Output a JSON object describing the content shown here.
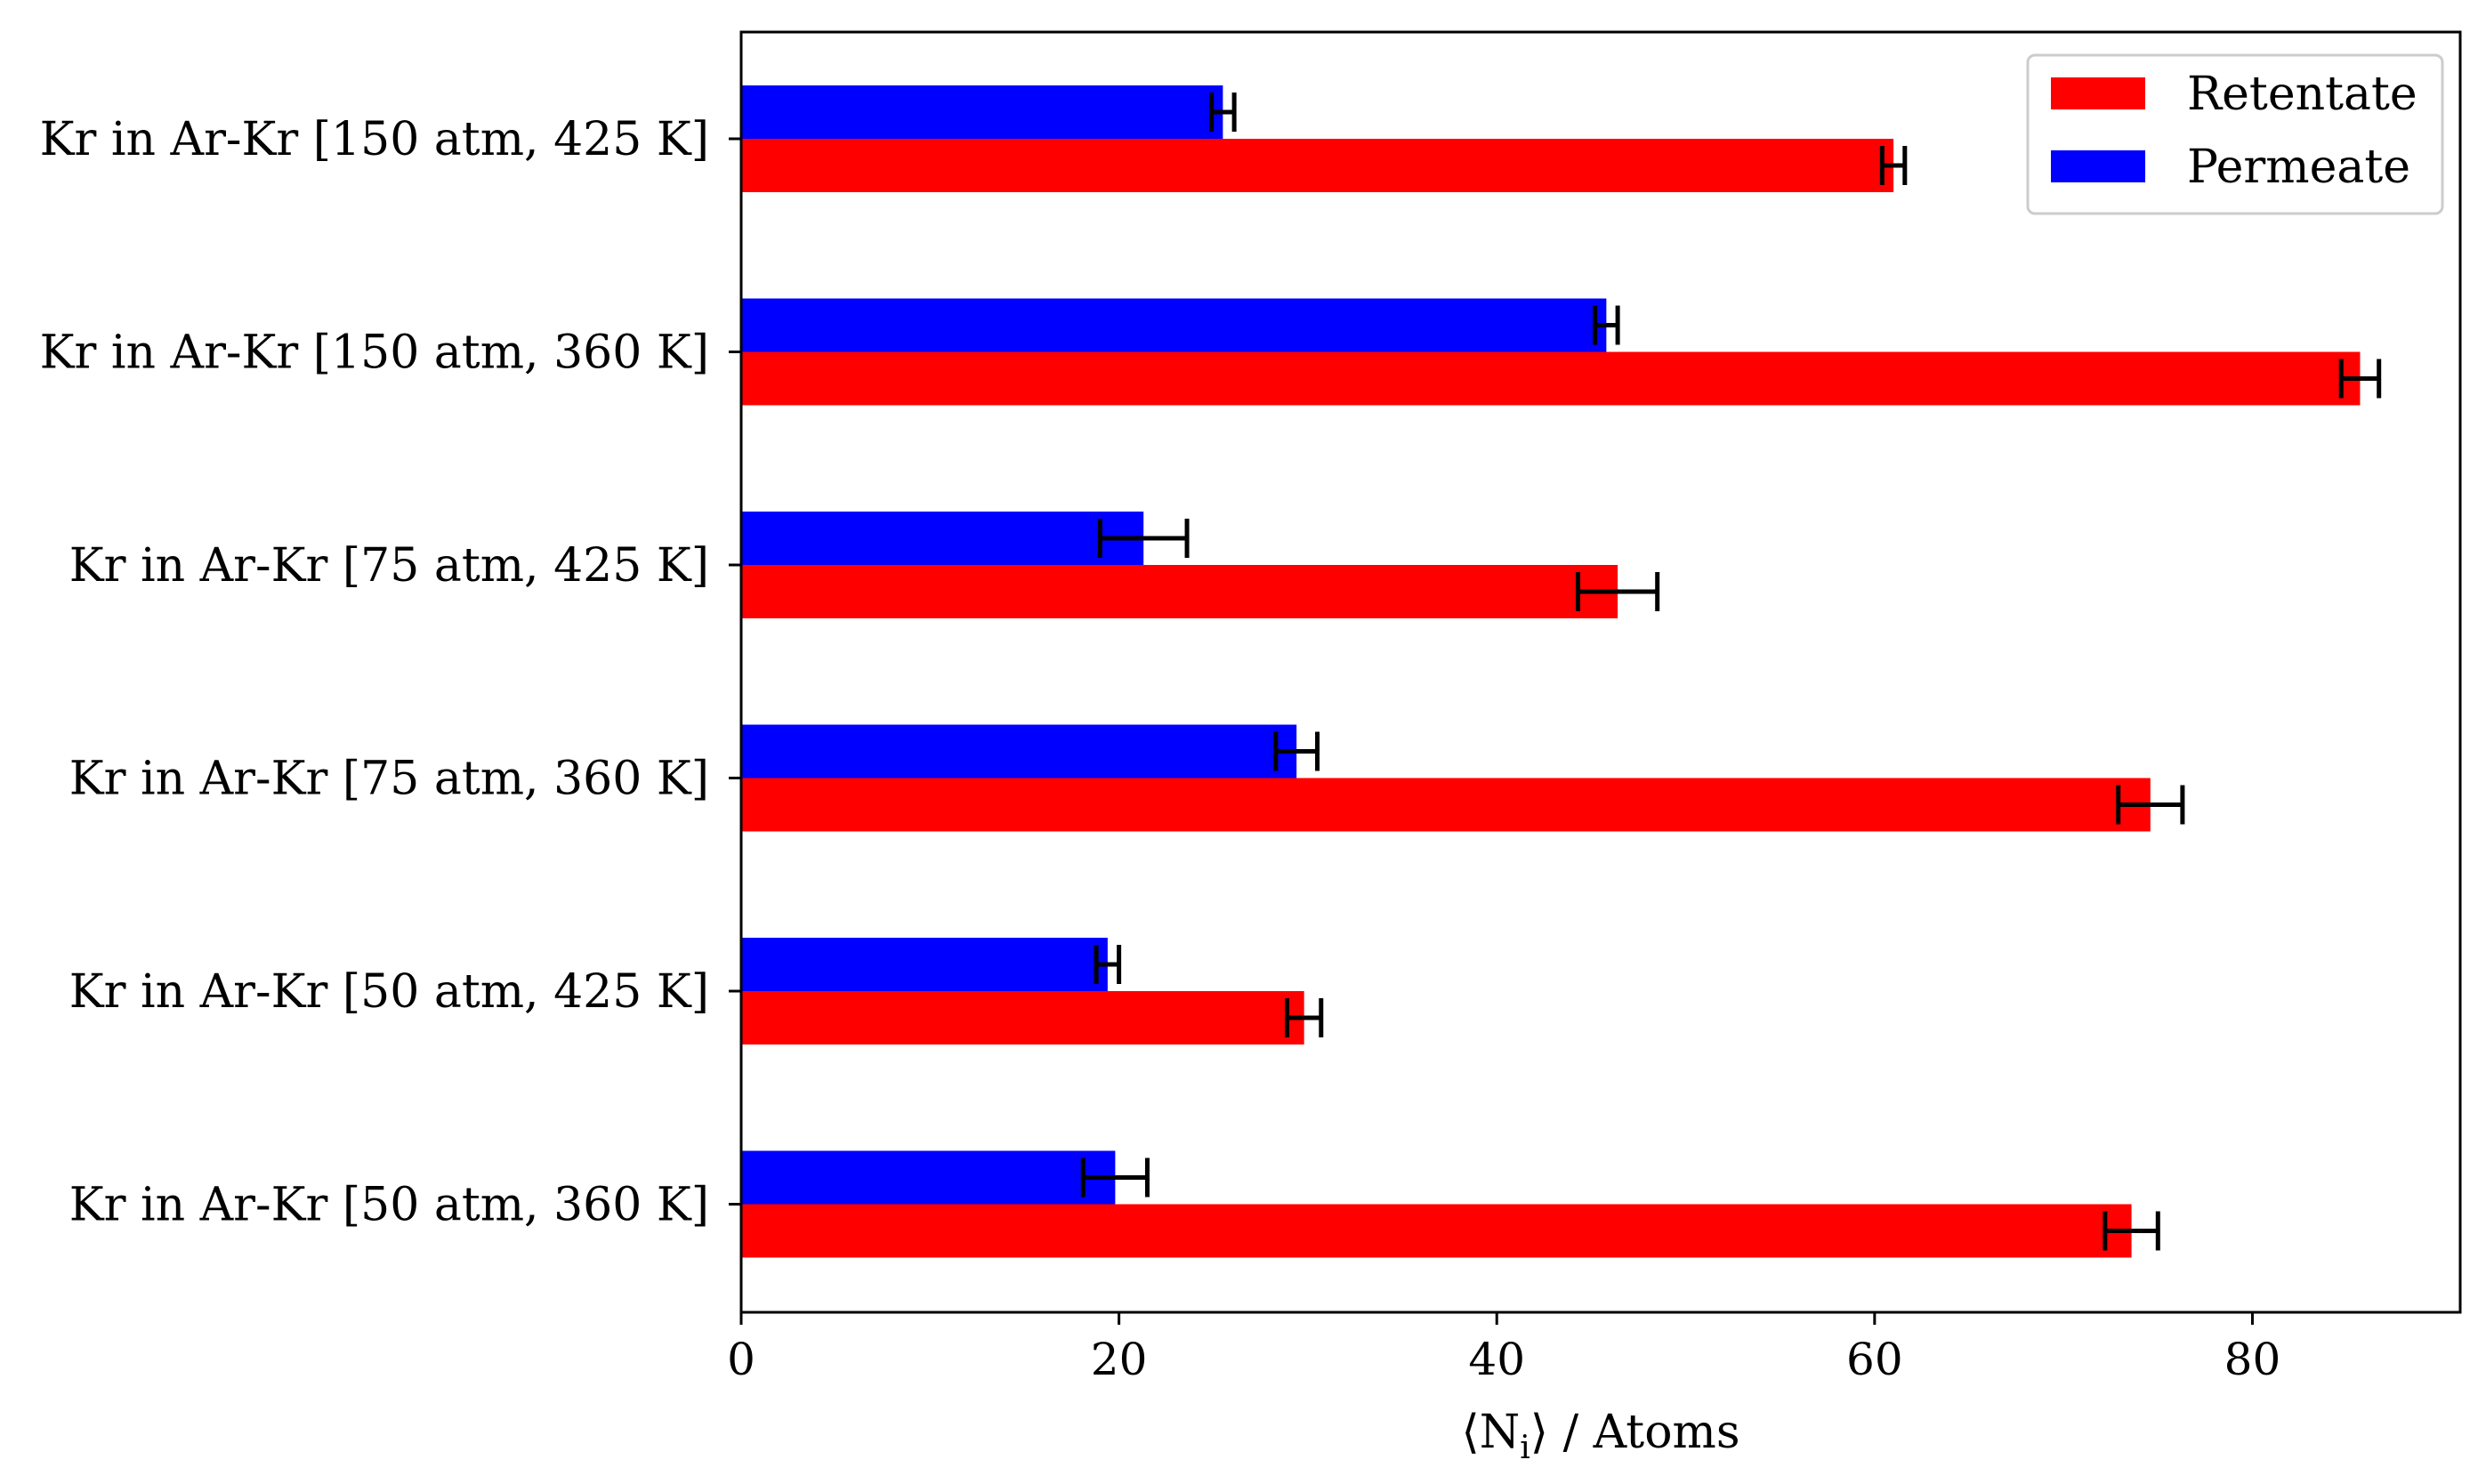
{
  "chart_data": {
    "type": "bar",
    "orientation": "horizontal",
    "title": "",
    "xlabel": "⟨N",
    "xlabel_subscript": "i",
    "xlabel_suffix": "⟩ / Atoms",
    "ylabel": "",
    "xlim": [
      0,
      91
    ],
    "xticks": [
      "0",
      "20",
      "40",
      "60",
      "80"
    ],
    "categories": [
      "Kr in Ar-Kr [150 atm, 425 K]",
      "Kr in Ar-Kr [150 atm, 360 K]",
      "Kr in Ar-Kr [75 atm, 425 K]",
      "Kr in Ar-Kr [75 atm, 360 K]",
      "Kr in Ar-Kr [50 atm, 425 K]",
      "Kr in Ar-Kr [50 atm, 360 K]"
    ],
    "series": [
      {
        "name": "Retentate",
        "color": "#ff0000",
        "values": [
          61.0,
          85.7,
          46.4,
          74.6,
          29.8,
          73.6
        ],
        "errors": [
          0.6,
          1.0,
          2.1,
          1.7,
          0.9,
          1.4
        ]
      },
      {
        "name": "Permeate",
        "color": "#0000ff",
        "values": [
          25.5,
          45.8,
          21.3,
          29.4,
          19.4,
          19.8
        ],
        "errors": [
          0.6,
          0.6,
          2.3,
          1.1,
          0.6,
          1.7
        ]
      }
    ],
    "grid": false,
    "legend_position": "top-right"
  }
}
